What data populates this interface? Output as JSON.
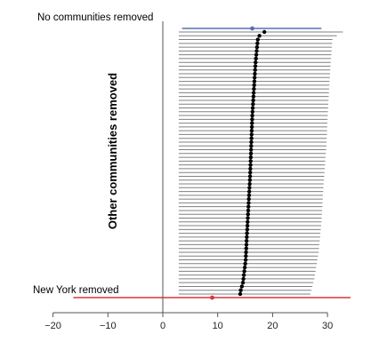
{
  "chart_data": {
    "type": "forest",
    "xlim": [
      -20,
      34
    ],
    "xticks": [
      -20,
      -10,
      0,
      10,
      20,
      30
    ],
    "xtick_labels": [
      "−20",
      "−10",
      "0",
      "10",
      "20",
      "30"
    ],
    "ylabel": "Other communities removed",
    "top_row": {
      "label": "No communities removed",
      "estimate": 16.3,
      "lower": 3.5,
      "upper": 28.9,
      "color": "#5a6fb7"
    },
    "bottom_row": {
      "label": "New York removed",
      "estimate": 9.0,
      "lower": -16.3,
      "upper": 34.2,
      "color": "#d9363e"
    },
    "rows_point": {
      "first": 18.5,
      "second": 17.6,
      "steps": [
        [
          2,
          17.3
        ],
        [
          8,
          16.9
        ],
        [
          15,
          16.6
        ],
        [
          22,
          16.3
        ],
        [
          30,
          16.1
        ],
        [
          38,
          15.9
        ],
        [
          46,
          15.6
        ],
        [
          54,
          15.3
        ],
        [
          60,
          15.1
        ],
        [
          66,
          14.6
        ],
        [
          68,
          14.2
        ],
        [
          70,
          14.0
        ]
      ]
    },
    "rows_lower": 2.9,
    "rows_upper_first": 32.8,
    "rows_upper_second": 31.7,
    "rows_upper_steps": [
      [
        2,
        30.9
      ],
      [
        10,
        30.5
      ],
      [
        20,
        30.1
      ],
      [
        30,
        29.8
      ],
      [
        40,
        29.3
      ],
      [
        50,
        28.9
      ],
      [
        58,
        28.4
      ],
      [
        65,
        27.6
      ],
      [
        70,
        26.7
      ]
    ],
    "n_rows": 70,
    "colors": {
      "row_line": "#808080",
      "row_point": "#000000",
      "axis": "#555555"
    }
  }
}
